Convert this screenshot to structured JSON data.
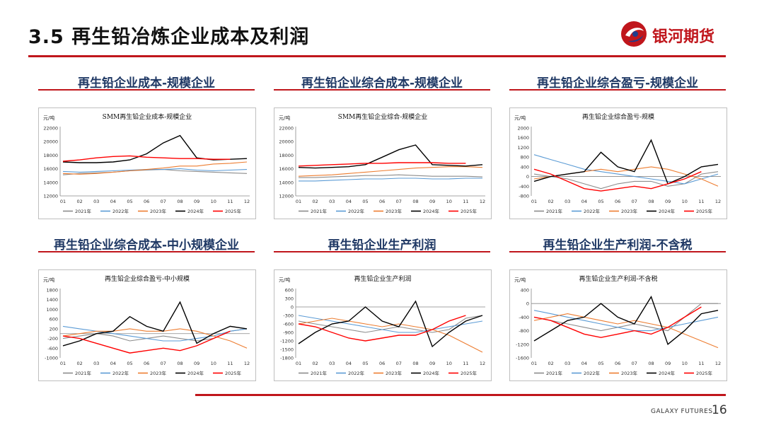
{
  "header": {
    "title": "3.5  再生铅冶炼企业成本及利润",
    "logo_text": "银河期货"
  },
  "footer": {
    "brand": "GALAXY FUTURES",
    "page_number": "16"
  },
  "colors": {
    "2021年": "#8c8c8c",
    "2022年": "#5b9bd5",
    "2023年": "#ed7d31",
    "2024年": "#000000",
    "2025年": "#ff0000"
  },
  "panels": [
    {
      "heading": "再生铅企业成本-规模企业"
    },
    {
      "heading": "再生铅企业综合成本-规模企业"
    },
    {
      "heading": "再生铅企业综合盈亏-规模企业"
    },
    {
      "heading": "再生铅企业综合成本-中小规模企业"
    },
    {
      "heading": "再生铅企业生产利润"
    },
    {
      "heading": "再生铅企业生产利润-不含税"
    }
  ],
  "chart_data": [
    {
      "type": "line",
      "title": "SMM再生铅企业成本-规模企业",
      "unit": "元/吨",
      "ylim": [
        12000,
        22000
      ],
      "yticks": [
        12000,
        14000,
        16000,
        18000,
        20000,
        22000
      ],
      "x": [
        "01",
        "02",
        "03",
        "04",
        "05",
        "06",
        "07",
        "08",
        "09",
        "10",
        "11",
        "12"
      ],
      "series": [
        {
          "name": "2021年",
          "values": [
            15100,
            15300,
            15400,
            15500,
            15700,
            15800,
            15900,
            15700,
            15600,
            15500,
            15400,
            15300
          ]
        },
        {
          "name": "2022年",
          "values": [
            15600,
            15500,
            15600,
            15700,
            15800,
            15900,
            15900,
            16000,
            15800,
            15700,
            15800,
            15900
          ]
        },
        {
          "name": "2023年",
          "values": [
            15300,
            15200,
            15300,
            15500,
            15700,
            15900,
            16100,
            16400,
            16400,
            16700,
            16800,
            17000
          ]
        },
        {
          "name": "2024年",
          "values": [
            17000,
            16900,
            16900,
            17000,
            17300,
            18200,
            19800,
            20900,
            17600,
            17300,
            17400,
            17500
          ]
        },
        {
          "name": "2025年",
          "values": [
            17100,
            17300,
            17600,
            17800,
            17900,
            17700,
            17600,
            17500,
            17500,
            17400,
            17400,
            null
          ]
        }
      ]
    },
    {
      "type": "line",
      "title": "SMM再生铅企业综合-规模企业",
      "unit": "元/吨",
      "ylim": [
        12000,
        22000
      ],
      "yticks": [
        12000,
        14000,
        16000,
        18000,
        20000,
        22000
      ],
      "x": [
        "01",
        "02",
        "03",
        "04",
        "05",
        "06",
        "07",
        "08",
        "09",
        "10",
        "11",
        "12"
      ],
      "series": [
        {
          "name": "2021年",
          "values": [
            14700,
            14700,
            14800,
            14900,
            15000,
            15000,
            15100,
            15000,
            14900,
            14900,
            14900,
            14800
          ]
        },
        {
          "name": "2022年",
          "values": [
            14200,
            14200,
            14300,
            14400,
            14500,
            14500,
            14600,
            14600,
            14500,
            14500,
            14600,
            14600
          ]
        },
        {
          "name": "2023年",
          "values": [
            14900,
            15000,
            15100,
            15300,
            15500,
            15700,
            15900,
            16100,
            16200,
            16300,
            16300,
            16200
          ]
        },
        {
          "name": "2024年",
          "values": [
            16200,
            16100,
            16200,
            16300,
            16600,
            17700,
            18800,
            19500,
            16600,
            16500,
            16400,
            16600
          ]
        },
        {
          "name": "2025年",
          "values": [
            16400,
            16500,
            16600,
            16700,
            16800,
            16800,
            16900,
            16900,
            16900,
            16800,
            16800,
            null
          ]
        }
      ]
    },
    {
      "type": "line",
      "title": "再生铅企业综合盈亏-规模",
      "unit": "元/吨",
      "ylim": [
        -800,
        2000
      ],
      "yticks": [
        -800,
        -400,
        0,
        400,
        800,
        1200,
        1600,
        2000
      ],
      "x": [
        "01",
        "02",
        "03",
        "04",
        "05",
        "06",
        "07",
        "08",
        "09",
        "10",
        "11",
        "12"
      ],
      "series": [
        {
          "name": "2021年",
          "values": [
            100,
            0,
            -100,
            -300,
            -500,
            -300,
            -200,
            -200,
            -400,
            -300,
            100,
            200
          ]
        },
        {
          "name": "2022年",
          "values": [
            900,
            700,
            500,
            300,
            200,
            100,
            0,
            -100,
            -200,
            -300,
            -100,
            100
          ]
        },
        {
          "name": "2023年",
          "values": [
            -100,
            0,
            100,
            200,
            300,
            200,
            300,
            400,
            300,
            100,
            -100,
            -400
          ]
        },
        {
          "name": "2024年",
          "values": [
            -200,
            0,
            100,
            200,
            1000,
            400,
            200,
            1500,
            -300,
            0,
            400,
            500
          ]
        },
        {
          "name": "2025年",
          "values": [
            300,
            100,
            -200,
            -500,
            -600,
            -500,
            -400,
            -500,
            -300,
            -100,
            200,
            null
          ]
        }
      ]
    },
    {
      "type": "line",
      "title": "再生铅企业综合盈亏-中小规模",
      "unit": "元/吨",
      "ylim": [
        -1000,
        1800
      ],
      "yticks": [
        -1000,
        -600,
        -200,
        200,
        600,
        1000,
        1400,
        1800
      ],
      "x": [
        "01",
        "02",
        "03",
        "04",
        "05",
        "06",
        "07",
        "08",
        "09",
        "10",
        "11",
        "12"
      ],
      "series": [
        {
          "name": "2021年",
          "values": [
            -200,
            -100,
            0,
            -100,
            -300,
            -200,
            -100,
            -200,
            -300,
            -200,
            100,
            200
          ]
        },
        {
          "name": "2022年",
          "values": [
            300,
            200,
            100,
            0,
            -100,
            -200,
            -300,
            -300,
            -200,
            -100,
            100,
            200
          ]
        },
        {
          "name": "2023年",
          "values": [
            -100,
            0,
            100,
            100,
            200,
            100,
            100,
            200,
            100,
            -100,
            -300,
            -600
          ]
        },
        {
          "name": "2024年",
          "values": [
            -500,
            -300,
            0,
            100,
            700,
            300,
            100,
            1300,
            -400,
            0,
            300,
            200
          ]
        },
        {
          "name": "2025年",
          "values": [
            -100,
            -200,
            -400,
            -600,
            -800,
            -700,
            -600,
            -700,
            -500,
            -200,
            100,
            null
          ]
        }
      ]
    },
    {
      "type": "line",
      "title": "再生铅企业生产利润",
      "unit": "元/吨",
      "ylim": [
        -1800,
        600
      ],
      "yticks": [
        -1800,
        -1500,
        -1200,
        -900,
        -600,
        -300,
        0,
        300,
        600
      ],
      "x": [
        "01",
        "02",
        "03",
        "04",
        "05",
        "06",
        "07",
        "08",
        "09",
        "10",
        "11",
        "12"
      ],
      "series": [
        {
          "name": "2021年",
          "values": [
            -500,
            -600,
            -700,
            -800,
            -900,
            -800,
            -700,
            -800,
            -900,
            -800,
            -400,
            -300
          ]
        },
        {
          "name": "2022年",
          "values": [
            -300,
            -400,
            -500,
            -600,
            -700,
            -800,
            -900,
            -900,
            -800,
            -700,
            -600,
            -500
          ]
        },
        {
          "name": "2023年",
          "values": [
            -600,
            -500,
            -400,
            -500,
            -600,
            -700,
            -600,
            -700,
            -800,
            -1000,
            -1300,
            -1600
          ]
        },
        {
          "name": "2024年",
          "values": [
            -1300,
            -900,
            -600,
            -500,
            0,
            -500,
            -700,
            200,
            -1400,
            -900,
            -500,
            -300
          ]
        },
        {
          "name": "2025年",
          "values": [
            -600,
            -700,
            -900,
            -1100,
            -1200,
            -1100,
            -1000,
            -1000,
            -800,
            -500,
            -300,
            null
          ]
        }
      ]
    },
    {
      "type": "line",
      "title": "再生铅企业生产利润-不含税",
      "unit": "元/吨",
      "ylim": [
        -1600,
        400
      ],
      "yticks": [
        -1600,
        -1200,
        -800,
        -400,
        0,
        400
      ],
      "x": [
        "01",
        "02",
        "03",
        "04",
        "05",
        "06",
        "07",
        "08",
        "09",
        "10",
        "11",
        "12"
      ],
      "series": [
        {
          "name": "2021年",
          "values": [
            -400,
            -500,
            -600,
            -700,
            -800,
            -700,
            -600,
            -700,
            -800,
            -400,
            0,
            0
          ]
        },
        {
          "name": "2022年",
          "values": [
            -200,
            -300,
            -400,
            -500,
            -600,
            -700,
            -800,
            -800,
            -700,
            -600,
            -500,
            -400
          ]
        },
        {
          "name": "2023年",
          "values": [
            -500,
            -400,
            -300,
            -400,
            -500,
            -600,
            -500,
            -600,
            -700,
            -900,
            -1100,
            -1300
          ]
        },
        {
          "name": "2024年",
          "values": [
            -1100,
            -800,
            -500,
            -400,
            0,
            -400,
            -600,
            200,
            -1200,
            -800,
            -300,
            -200
          ]
        },
        {
          "name": "2025年",
          "values": [
            -400,
            -500,
            -700,
            -900,
            -1000,
            -900,
            -800,
            -900,
            -700,
            -400,
            -100,
            null
          ]
        }
      ]
    }
  ]
}
